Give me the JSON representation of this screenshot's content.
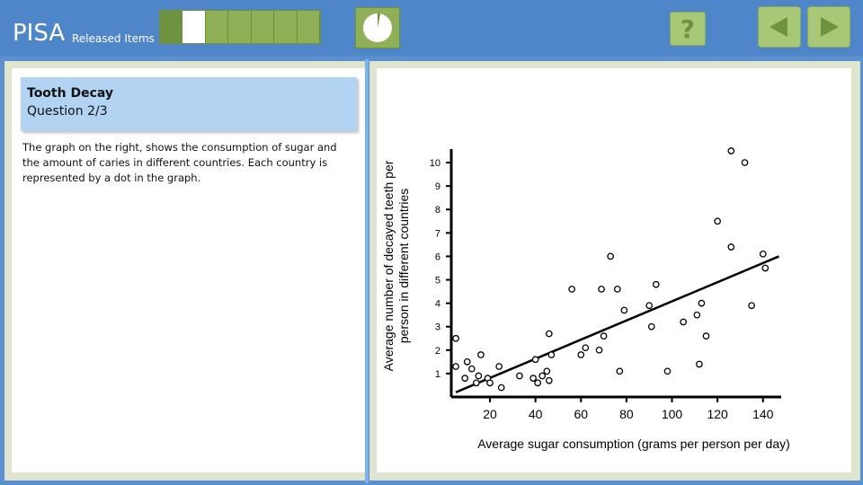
{
  "header": {
    "brand": "PISA",
    "subtitle": "Released Items",
    "progress": {
      "total": 7,
      "current": 2
    },
    "timer_fraction_elapsed": 0.03
  },
  "nav": {
    "help_label": "?",
    "back_icon": "triangle-left-icon",
    "next_icon": "triangle-right-icon"
  },
  "question": {
    "title": "Tooth Decay",
    "number": "Question 2/3",
    "text": "The graph on the right, shows the consumption of sugar and the amount of caries in different countries. Each country is represented by a dot in the graph."
  },
  "colors": {
    "topbar": "#4f86c9",
    "progress_green": "#8fb056",
    "button_green": "#a8c878",
    "header_blue": "#b3d3f2"
  },
  "chart_data": {
    "type": "scatter",
    "xlabel": "Average sugar consumption (grams per person per day)",
    "ylabel_lines": [
      "Average number of decayed teeth per",
      "person in different countries"
    ],
    "xticks": [
      20,
      40,
      60,
      80,
      100,
      120,
      140
    ],
    "yticks": [
      1,
      2,
      3,
      4,
      5,
      6,
      7,
      8,
      9,
      10
    ],
    "xlim": [
      3,
      148
    ],
    "ylim": [
      0,
      10.5
    ],
    "points": [
      [
        5,
        2.5
      ],
      [
        5,
        1.3
      ],
      [
        9,
        0.8
      ],
      [
        10,
        1.5
      ],
      [
        12,
        1.2
      ],
      [
        14,
        0.6
      ],
      [
        15,
        0.9
      ],
      [
        16,
        1.8
      ],
      [
        19,
        0.8
      ],
      [
        20,
        0.6
      ],
      [
        24,
        1.3
      ],
      [
        25,
        0.4
      ],
      [
        33,
        0.9
      ],
      [
        39,
        0.8
      ],
      [
        40,
        1.6
      ],
      [
        41,
        0.6
      ],
      [
        43,
        0.9
      ],
      [
        45,
        1.1
      ],
      [
        46,
        2.7
      ],
      [
        47,
        1.8
      ],
      [
        46,
        0.7
      ],
      [
        56,
        4.6
      ],
      [
        60,
        1.8
      ],
      [
        62,
        2.1
      ],
      [
        68,
        2.0
      ],
      [
        69,
        4.6
      ],
      [
        70,
        2.6
      ],
      [
        73,
        6.0
      ],
      [
        76,
        4.6
      ],
      [
        77,
        1.1
      ],
      [
        79,
        3.7
      ],
      [
        90,
        3.9
      ],
      [
        91,
        3.0
      ],
      [
        93,
        4.8
      ],
      [
        98,
        1.1
      ],
      [
        105,
        3.2
      ],
      [
        111,
        3.5
      ],
      [
        112,
        1.4
      ],
      [
        113,
        4.0
      ],
      [
        115,
        2.6
      ],
      [
        120,
        7.5
      ],
      [
        126,
        10.5
      ],
      [
        126,
        6.4
      ],
      [
        132,
        10.0
      ],
      [
        135,
        3.9
      ],
      [
        140,
        6.1
      ],
      [
        141,
        5.5
      ]
    ],
    "trendline": {
      "x": [
        5,
        147
      ],
      "y": [
        0.2,
        6.0
      ]
    }
  }
}
